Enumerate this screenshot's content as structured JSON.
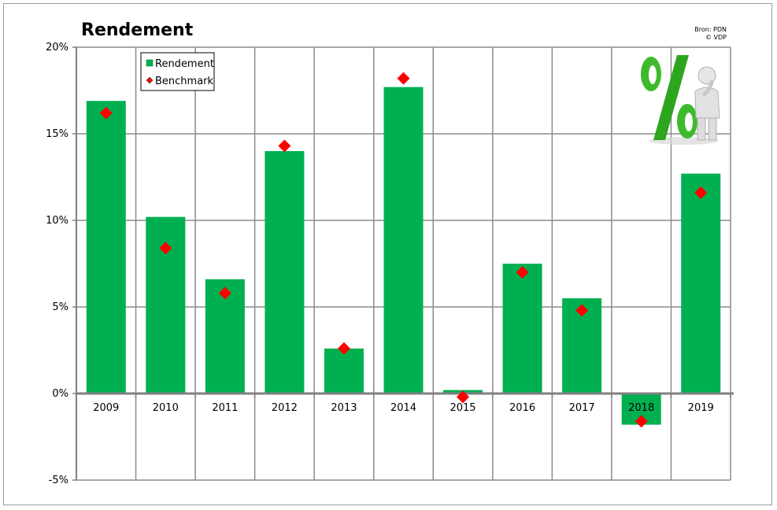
{
  "chart_data": {
    "type": "bar",
    "title": "Rendement",
    "source_lines": [
      "Bron: PDN",
      "© VDP"
    ],
    "categories": [
      "2009",
      "2010",
      "2011",
      "2012",
      "2013",
      "2014",
      "2015",
      "2016",
      "2017",
      "2018",
      "2019"
    ],
    "series": [
      {
        "name": "Rendement",
        "type": "bar",
        "color": "#00b050",
        "values": [
          16.9,
          10.2,
          6.6,
          14.0,
          2.6,
          17.7,
          0.2,
          7.5,
          5.5,
          -1.8,
          12.7
        ]
      },
      {
        "name": "Benchmark",
        "type": "scatter",
        "marker": "diamond",
        "color": "#ff0000",
        "values": [
          16.2,
          8.4,
          5.8,
          14.3,
          2.6,
          18.2,
          -0.2,
          7.0,
          4.8,
          -1.6,
          11.6
        ]
      }
    ],
    "ylim": [
      -5,
      20
    ],
    "yticks": [
      -5,
      0,
      5,
      10,
      15,
      20
    ],
    "ytick_labels": [
      "-5%",
      "0%",
      "5%",
      "10%",
      "15%",
      "20%"
    ],
    "grid": true,
    "legend_position": "top-left"
  },
  "decoration": {
    "logo_icon": "percent-thinking-figure-icon"
  }
}
